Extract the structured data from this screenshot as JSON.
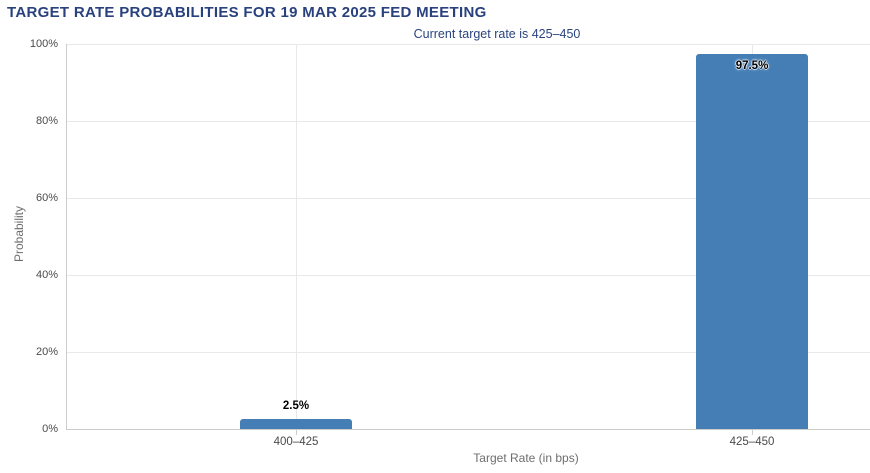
{
  "chart_data": {
    "type": "bar",
    "title": "TARGET RATE PROBABILITIES FOR 19 MAR 2025 FED MEETING",
    "subtitle": "Current target rate is 425–450",
    "xlabel": "Target Rate (in bps)",
    "ylabel": "Probability",
    "categories": [
      "400–425",
      "425–450"
    ],
    "values": [
      2.5,
      97.5
    ],
    "data_labels": [
      "2.5%",
      "97.5%"
    ],
    "yticks": [
      {
        "value": 0,
        "label": "0%"
      },
      {
        "value": 20,
        "label": "20%"
      },
      {
        "value": 40,
        "label": "40%"
      },
      {
        "value": 60,
        "label": "60%"
      },
      {
        "value": 80,
        "label": "80%"
      },
      {
        "value": 100,
        "label": "100%"
      }
    ],
    "ylim": [
      0,
      100
    ],
    "grid": true,
    "legend": "none",
    "colors": {
      "bar": "#447eb5",
      "title": "#29417d",
      "subtitle": "#2a4480",
      "axis_line": "#cccccc",
      "gridline": "#e8e8e8",
      "tick_label": "#4a4a4a",
      "axis_title": "#6e6e6e",
      "data_label": "#000000",
      "background": "#ffffff"
    }
  }
}
